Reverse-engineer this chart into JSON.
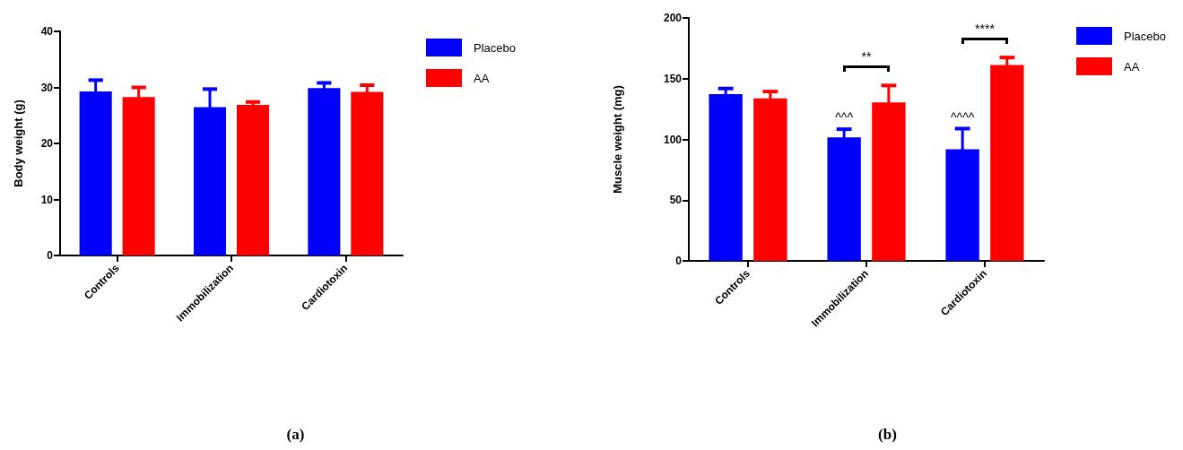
{
  "chart_data": [
    {
      "type": "bar",
      "title": "(a)",
      "ylabel": "Body weight (g)",
      "categories": [
        "Controls",
        "Immobilization",
        "Cardiotoxin"
      ],
      "series": [
        {
          "name": "Placebo",
          "color": "#0000ff",
          "values": [
            29.3,
            26.5,
            29.9
          ],
          "errors": [
            2.0,
            3.2,
            0.9
          ]
        },
        {
          "name": "AA",
          "color": "#ff0000",
          "values": [
            28.3,
            26.9,
            29.2
          ],
          "errors": [
            1.7,
            0.5,
            1.2
          ]
        }
      ],
      "ylim": [
        0,
        40
      ],
      "yticks": [
        0,
        10,
        20,
        30,
        40
      ],
      "grid": false,
      "legend": "top right"
    },
    {
      "type": "bar",
      "title": "(b)",
      "ylabel": "Muscle weight (mg)",
      "categories": [
        "Controls",
        "Immobilization",
        "Cardiotoxin"
      ],
      "series": [
        {
          "name": "Placebo",
          "color": "#0000ff",
          "values": [
            137.3,
            101.6,
            91.9
          ],
          "errors": [
            4.6,
            6.8,
            17
          ]
        },
        {
          "name": "AA",
          "color": "#ff0000",
          "values": [
            133.8,
            130.4,
            161.2
          ],
          "errors": [
            5.6,
            14,
            6.2
          ]
        }
      ],
      "ylim": [
        0,
        200
      ],
      "yticks": [
        0,
        50,
        100,
        150,
        200
      ],
      "grid": false,
      "legend": "top right",
      "annotations": [
        "**",
        "****",
        {
          "text": "^^^",
          "x": "Immobilization",
          "y": 113
        },
        {
          "text": "^^^^",
          "x": "Cardiotoxin",
          "y": 113
        }
      ]
    }
  ]
}
